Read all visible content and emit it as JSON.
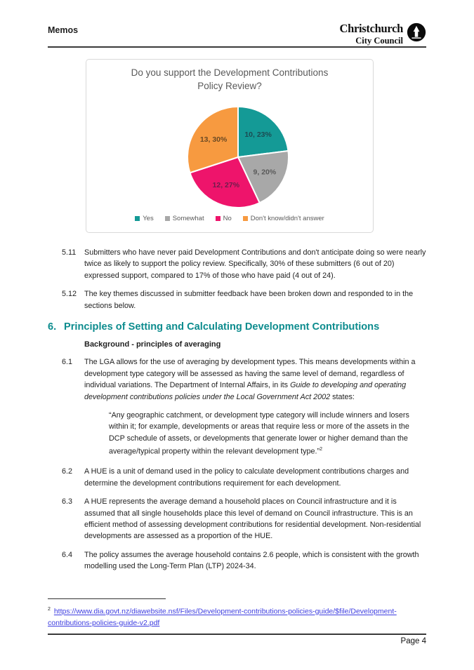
{
  "page": {
    "title": "Memos",
    "page_number": "Page 4"
  },
  "logo": {
    "name": "Christchurch City Council",
    "line1": "Christchurch",
    "line2": "City Council"
  },
  "chart_data": {
    "type": "pie",
    "title": "Do you support the Development Contributions Policy Review?",
    "title_lines": [
      "Do you support the Development Contributions",
      "Policy Review?"
    ],
    "start_angle_deg": 0,
    "direction": "clockwise",
    "legend_position": "bottom",
    "slices": [
      {
        "label": "Yes",
        "count": 10,
        "pct": 23,
        "data_label": "10, 23%",
        "color": "#149A96",
        "label_color": "#1C4B52"
      },
      {
        "label": "Somewhat",
        "count": 9,
        "pct": 20,
        "data_label": "9, 20%",
        "color": "#A8A8A8",
        "label_color": "#5A5A5A"
      },
      {
        "label": "No",
        "count": 12,
        "pct": 27,
        "data_label": "12, 27%",
        "color": "#EE146B",
        "label_color": "#6E1D4C"
      },
      {
        "label": "Don't know/didn't answer",
        "count": 13,
        "pct": 30,
        "data_label": "13, 30%",
        "color": "#F79A40",
        "label_color": "#6B4A24"
      }
    ]
  },
  "body": {
    "items_5": [
      {
        "num": "5.11",
        "text": "Submitters who have never paid Development Contributions and don't anticipate doing so were nearly twice as likely to support the policy review. Specifically, 30% of these submitters (6 out of 20) expressed support, compared to 17% of those who have paid (4 out of 24)."
      },
      {
        "num": "5.12",
        "text": "The key themes discussed in submitter feedback have been broken down and responded to in the sections below."
      }
    ],
    "section6": {
      "num": "6.",
      "title": "Principles of Setting and Calculating Development Contributions",
      "subheading": "Background - principles of averaging",
      "items": [
        {
          "num": "6.1",
          "parts": [
            {
              "t": "The LGA allows for the use of averaging by development types.  This means developments within a development type category will be assessed as having the same level of demand, regardless of individual variations. The Department of Internal Affairs, in its "
            },
            {
              "t": "Guide to developing and operating development contributions policies under the Local Government Act 2002",
              "i": true
            },
            {
              "t": " states:"
            }
          ]
        },
        {
          "num": "6.2",
          "text": "A HUE is a unit of demand used in the policy to calculate development contributions charges and determine the development contributions requirement for each development."
        },
        {
          "num": "6.3",
          "text": "A HUE represents the average demand a household places on Council infrastructure and it is assumed that all single households place this level of demand on Council infrastructure. This is an efficient method of assessing development contributions for residential development. Non-residential developments are assessed as a proportion of the HUE."
        },
        {
          "num": "6.4",
          "text": "The policy assumes the average household contains 2.6 people, which is consistent with the growth modelling used the Long-Term Plan (LTP) 2024-34."
        }
      ],
      "quote_parts": [
        {
          "t": "“Any geographic catchment, or development type category will include winners and losers within it; for example, developments or areas that require less or more of the assets in the DCP schedule of assets, or developments that generate lower or higher demand than the average/typical property within the relevant development type.”"
        },
        {
          "t": "2",
          "sup": true
        }
      ]
    }
  },
  "footnote": {
    "marker": "2",
    "link_text": "https://www.dia.govt.nz/diawebsite.nsf/Files/Development-contributions-policies-guide/$file/Development-contributions-policies-guide-v2.pdf"
  }
}
